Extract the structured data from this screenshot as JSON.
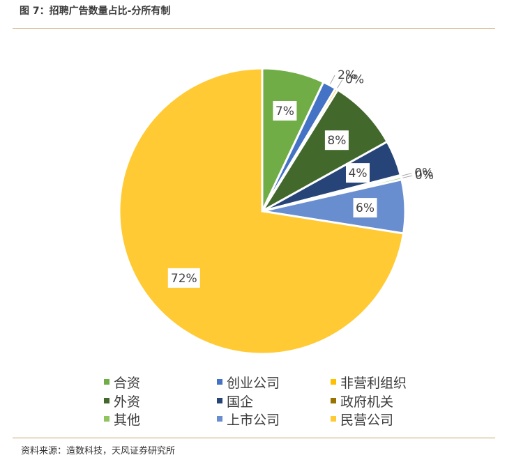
{
  "title": "图 7：招聘广告数量占比-分所有制",
  "source": "资料来源：造数科技，天风证券研究所",
  "chart_data": {
    "type": "pie",
    "slices": [
      {
        "name": "合资",
        "value": 7,
        "label": "7%",
        "color": "#70ad47"
      },
      {
        "name": "创业公司",
        "value": 1.5,
        "label": "2%",
        "color": "#4472c4"
      },
      {
        "name": "非营利组织",
        "value": 0.3,
        "label": "0%",
        "color": "#ffc000"
      },
      {
        "name": "外资",
        "value": 8,
        "label": "8%",
        "color": "#43682b"
      },
      {
        "name": "国企",
        "value": 4,
        "label": "4%",
        "color": "#264478"
      },
      {
        "name": "政府机关",
        "value": 0.2,
        "label": "0%",
        "color": "#997300"
      },
      {
        "name": "其他",
        "value": 0.3,
        "label": "0%",
        "color": "#8fc45e"
      },
      {
        "name": "上市公司",
        "value": 6,
        "label": "6%",
        "color": "#698ed0"
      },
      {
        "name": "民营公司",
        "value": 72,
        "label": "72%",
        "color": "#ffca33"
      }
    ],
    "legend_position": "bottom"
  }
}
